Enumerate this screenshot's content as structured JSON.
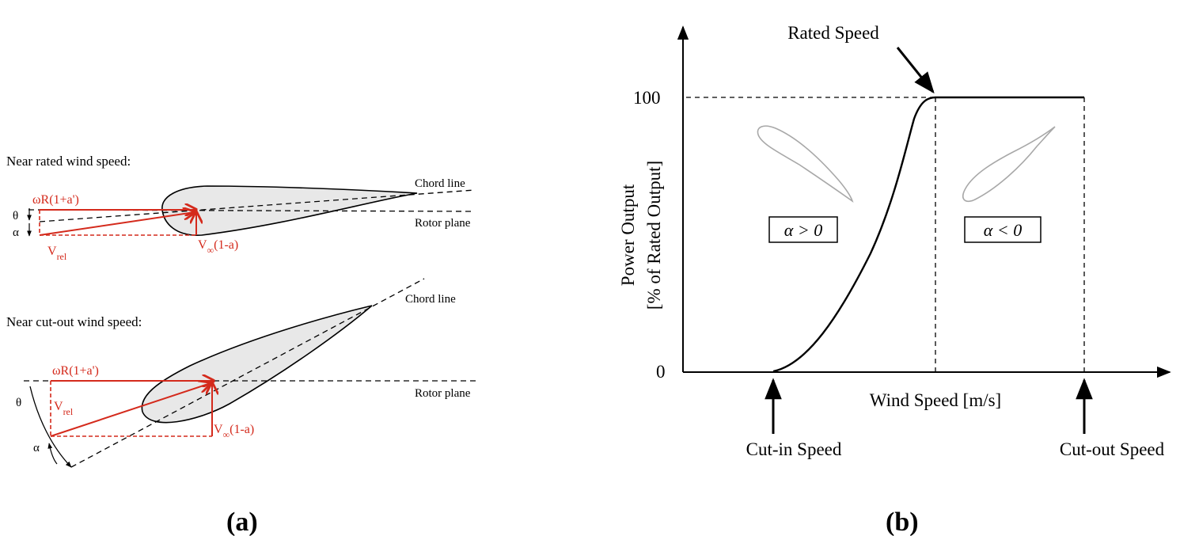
{
  "panel_a": {
    "label": "(a)",
    "rated": {
      "title": "Near rated wind speed:",
      "chord_label": "Chord line",
      "rotor_label": "Rotor plane",
      "theta": "θ",
      "alpha": "α",
      "omega_r": "ωR(1+a')",
      "v_rel_main": "V",
      "v_rel_sub": "rel",
      "v_inf_main": "V",
      "v_inf_sub": "∞",
      "v_inf_tail": "(1-a)"
    },
    "cutout": {
      "title": "Near cut-out wind speed:",
      "chord_label": "Chord line",
      "rotor_label": "Rotor plane",
      "theta": "θ",
      "alpha": "α",
      "omega_r": "ωR(1+a')",
      "v_rel_main": "V",
      "v_rel_sub": "rel",
      "v_inf_main": "V",
      "v_inf_sub": "∞",
      "v_inf_tail": "(1-a)"
    }
  },
  "panel_b": {
    "label": "(b)",
    "y_tick_100": "100",
    "y_tick_0": "0",
    "ylabel_line1": "Power Output",
    "ylabel_line2": "[% of Rated Output]",
    "xlabel": "Wind Speed [m/s]",
    "rated_speed": "Rated Speed",
    "cut_in": "Cut-in Speed",
    "cut_out": "Cut-out Speed",
    "alpha_pos": "α > 0",
    "alpha_neg": "α < 0"
  },
  "colors": {
    "red": "#d42a1c",
    "airfoil_fill": "#e8e8e8",
    "black": "#000000"
  }
}
